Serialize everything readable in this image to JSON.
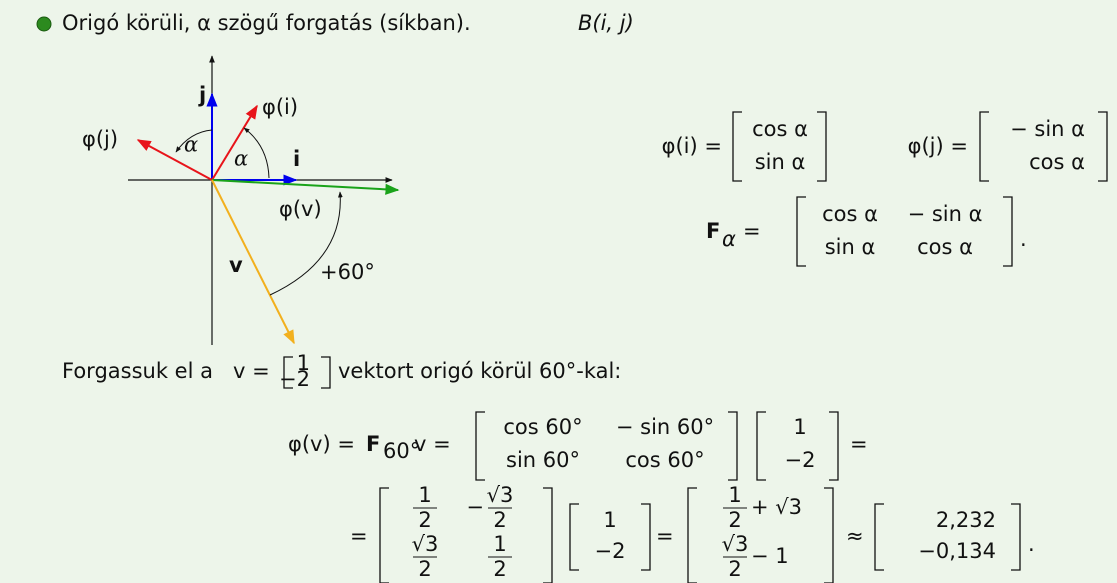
{
  "bullet": "Origó körüli, α szögű forgatás (síkban).",
  "basis": "B(i, j)",
  "diagram": {
    "j": "j",
    "i": "i",
    "phi_i": "φ(i)",
    "phi_j": "φ(j)",
    "alpha_1": "α",
    "alpha_2": "α",
    "phi_v": "φ(v)",
    "v": "v",
    "angle": "+60°"
  },
  "formulas": {
    "phi_i": {
      "lhs": "φ(i) =",
      "matrix": [
        [
          "cos α"
        ],
        [
          "sin α"
        ]
      ]
    },
    "phi_j": {
      "lhs": "φ(j) =",
      "matrix": [
        [
          "− sin α"
        ],
        [
          "cos α"
        ]
      ]
    },
    "f_alpha": {
      "lhs": "F",
      "sub": "α",
      "eq": "=",
      "matrix": [
        [
          "cos α",
          "− sin α"
        ],
        [
          "sin α",
          "cos α"
        ]
      ],
      "end": "."
    }
  },
  "example": {
    "pre": "Forgassuk el a",
    "v": "v =",
    "vector": [
      [
        "1"
      ],
      [
        "−2"
      ]
    ],
    "post": "vektort origó körül 60°-kal:"
  },
  "equation": {
    "row1": {
      "lhs": "φ(v) =",
      "F": "F",
      "sub": "60°",
      "v": "v =",
      "m1": [
        [
          "cos 60°",
          "− sin 60°"
        ],
        [
          "sin 60°",
          "cos 60°"
        ]
      ],
      "m2": [
        [
          "1"
        ],
        [
          "−2"
        ]
      ],
      "end": "="
    },
    "row2": {
      "start": "=",
      "m1": [
        [
          {
            "num": "1",
            "den": "2"
          },
          {
            "sign": "−",
            "num": "√3",
            "den": "2"
          }
        ],
        [
          {
            "num": "√3",
            "den": "2"
          },
          {
            "num": "1",
            "den": "2"
          }
        ]
      ],
      "m2": [
        [
          "1"
        ],
        [
          "−2"
        ]
      ],
      "eq1": "=",
      "m3": [
        [
          {
            "num": "1",
            "den": "2",
            "rest": "+ √3"
          }
        ],
        [
          {
            "num": "√3",
            "den": "2",
            "rest": "− 1"
          }
        ]
      ],
      "approx": "≈",
      "m4": [
        [
          "2,232"
        ],
        [
          "−0,134"
        ]
      ],
      "end": "."
    }
  }
}
